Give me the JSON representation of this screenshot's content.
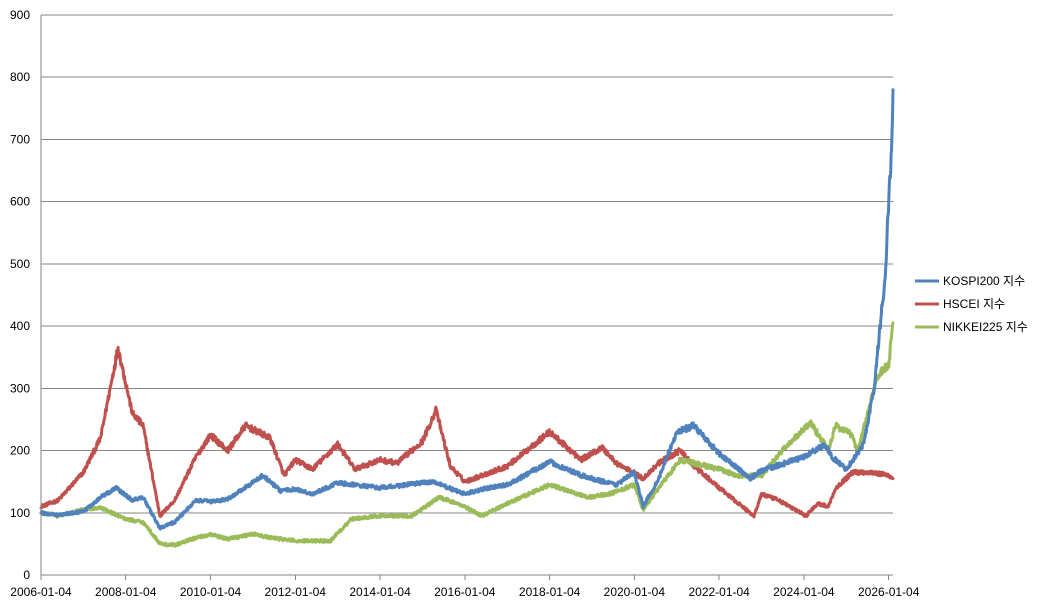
{
  "chart_data": {
    "type": "line",
    "x_axis": {
      "type": "date",
      "range": [
        "2006-01-04",
        "2026-02-10"
      ],
      "tick_labels": [
        "2006-01-04",
        "2008-01-04",
        "2010-01-04",
        "2012-01-04",
        "2014-01-04",
        "2016-01-04",
        "2018-01-04",
        "2020-01-04",
        "2022-01-04",
        "2024-01-04",
        "2026-01-04"
      ]
    },
    "y_axis": {
      "range": [
        0,
        900
      ],
      "tick_labels": [
        "0",
        "100",
        "200",
        "300",
        "400",
        "500",
        "600",
        "700",
        "800",
        "900"
      ]
    },
    "grid": "horizontal",
    "legend_position": "right",
    "series": [
      {
        "name": "KOSPI200 지수",
        "color": "#4F81BD",
        "points": [
          [
            "2006-01-04",
            100
          ],
          [
            "2006-06-01",
            96
          ],
          [
            "2007-01-04",
            102
          ],
          [
            "2007-06-01",
            125
          ],
          [
            "2007-10-15",
            140
          ],
          [
            "2008-03-01",
            120
          ],
          [
            "2008-06-01",
            125
          ],
          [
            "2008-10-25",
            75
          ],
          [
            "2009-03-01",
            85
          ],
          [
            "2009-09-01",
            120
          ],
          [
            "2010-01-04",
            118
          ],
          [
            "2010-06-01",
            122
          ],
          [
            "2011-04-01",
            160
          ],
          [
            "2011-09-01",
            135
          ],
          [
            "2012-01-04",
            138
          ],
          [
            "2012-06-01",
            130
          ],
          [
            "2013-01-04",
            148
          ],
          [
            "2014-01-04",
            140
          ],
          [
            "2015-04-01",
            150
          ],
          [
            "2016-01-04",
            130
          ],
          [
            "2016-06-01",
            138
          ],
          [
            "2017-01-04",
            145
          ],
          [
            "2018-01-04",
            182
          ],
          [
            "2018-10-01",
            160
          ],
          [
            "2019-01-04",
            155
          ],
          [
            "2019-08-01",
            145
          ],
          [
            "2020-01-04",
            165
          ],
          [
            "2020-03-20",
            110
          ],
          [
            "2020-08-01",
            155
          ],
          [
            "2021-01-04",
            230
          ],
          [
            "2021-06-01",
            240
          ],
          [
            "2022-01-04",
            195
          ],
          [
            "2022-10-01",
            155
          ],
          [
            "2023-01-04",
            168
          ],
          [
            "2023-07-01",
            178
          ],
          [
            "2024-01-04",
            190
          ],
          [
            "2024-07-01",
            210
          ],
          [
            "2024-09-01",
            190
          ],
          [
            "2025-01-04",
            170
          ],
          [
            "2025-06-01",
            210
          ],
          [
            "2025-09-01",
            300
          ],
          [
            "2025-11-01",
            420
          ],
          [
            "2025-12-01",
            470
          ],
          [
            "2026-01-10",
            620
          ],
          [
            "2026-02-01",
            700
          ],
          [
            "2026-02-10",
            780
          ]
        ]
      },
      {
        "name": "HSCEI 지수",
        "color": "#C0504D",
        "points": [
          [
            "2006-01-04",
            110
          ],
          [
            "2006-06-01",
            120
          ],
          [
            "2007-01-04",
            165
          ],
          [
            "2007-06-01",
            220
          ],
          [
            "2007-10-30",
            365
          ],
          [
            "2008-03-01",
            260
          ],
          [
            "2008-06-01",
            240
          ],
          [
            "2008-10-25",
            95
          ],
          [
            "2009-03-01",
            120
          ],
          [
            "2009-09-01",
            190
          ],
          [
            "2010-01-04",
            225
          ],
          [
            "2010-06-01",
            200
          ],
          [
            "2010-11-01",
            240
          ],
          [
            "2011-06-01",
            220
          ],
          [
            "2011-10-01",
            160
          ],
          [
            "2012-01-04",
            185
          ],
          [
            "2012-06-01",
            170
          ],
          [
            "2013-01-04",
            210
          ],
          [
            "2013-06-01",
            170
          ],
          [
            "2014-01-04",
            185
          ],
          [
            "2014-06-01",
            180
          ],
          [
            "2015-01-04",
            215
          ],
          [
            "2015-05-01",
            265
          ],
          [
            "2015-09-01",
            175
          ],
          [
            "2016-01-04",
            150
          ],
          [
            "2016-06-01",
            160
          ],
          [
            "2017-01-04",
            175
          ],
          [
            "2018-01-04",
            230
          ],
          [
            "2018-10-01",
            185
          ],
          [
            "2019-04-01",
            205
          ],
          [
            "2019-08-01",
            180
          ],
          [
            "2020-03-20",
            155
          ],
          [
            "2020-08-01",
            180
          ],
          [
            "2021-02-01",
            200
          ],
          [
            "2021-06-01",
            175
          ],
          [
            "2022-01-04",
            140
          ],
          [
            "2022-10-31",
            95
          ],
          [
            "2023-01-04",
            130
          ],
          [
            "2023-06-01",
            120
          ],
          [
            "2024-01-22",
            95
          ],
          [
            "2024-05-01",
            115
          ],
          [
            "2024-08-01",
            110
          ],
          [
            "2024-10-05",
            140
          ],
          [
            "2025-03-01",
            165
          ],
          [
            "2025-08-01",
            165
          ],
          [
            "2026-01-04",
            160
          ],
          [
            "2026-02-10",
            155
          ]
        ]
      },
      {
        "name": "NIKKEI225 지수",
        "color": "#9BBB59",
        "points": [
          [
            "2006-01-04",
            100
          ],
          [
            "2006-06-01",
            95
          ],
          [
            "2007-01-04",
            105
          ],
          [
            "2007-06-01",
            108
          ],
          [
            "2008-01-04",
            90
          ],
          [
            "2008-06-01",
            85
          ],
          [
            "2008-10-28",
            50
          ],
          [
            "2009-03-01",
            48
          ],
          [
            "2009-09-01",
            60
          ],
          [
            "2010-01-04",
            65
          ],
          [
            "2010-06-01",
            58
          ],
          [
            "2011-01-04",
            66
          ],
          [
            "2011-06-01",
            60
          ],
          [
            "2012-01-04",
            55
          ],
          [
            "2012-11-01",
            55
          ],
          [
            "2013-05-01",
            90
          ],
          [
            "2014-01-04",
            95
          ],
          [
            "2014-10-01",
            95
          ],
          [
            "2015-06-01",
            125
          ],
          [
            "2016-01-04",
            110
          ],
          [
            "2016-06-01",
            95
          ],
          [
            "2017-01-04",
            115
          ],
          [
            "2018-01-04",
            145
          ],
          [
            "2018-12-01",
            125
          ],
          [
            "2019-06-01",
            130
          ],
          [
            "2020-01-04",
            145
          ],
          [
            "2020-03-20",
            105
          ],
          [
            "2020-08-01",
            140
          ],
          [
            "2021-02-01",
            185
          ],
          [
            "2021-06-01",
            180
          ],
          [
            "2022-01-04",
            170
          ],
          [
            "2022-06-01",
            160
          ],
          [
            "2023-01-04",
            160
          ],
          [
            "2023-07-01",
            200
          ],
          [
            "2024-03-01",
            245
          ],
          [
            "2024-08-05",
            200
          ],
          [
            "2024-10-01",
            240
          ],
          [
            "2025-03-01",
            225
          ],
          [
            "2025-04-07",
            195
          ],
          [
            "2025-07-01",
            255
          ],
          [
            "2025-10-01",
            320
          ],
          [
            "2026-01-04",
            340
          ],
          [
            "2026-02-10",
            405
          ]
        ]
      }
    ]
  }
}
